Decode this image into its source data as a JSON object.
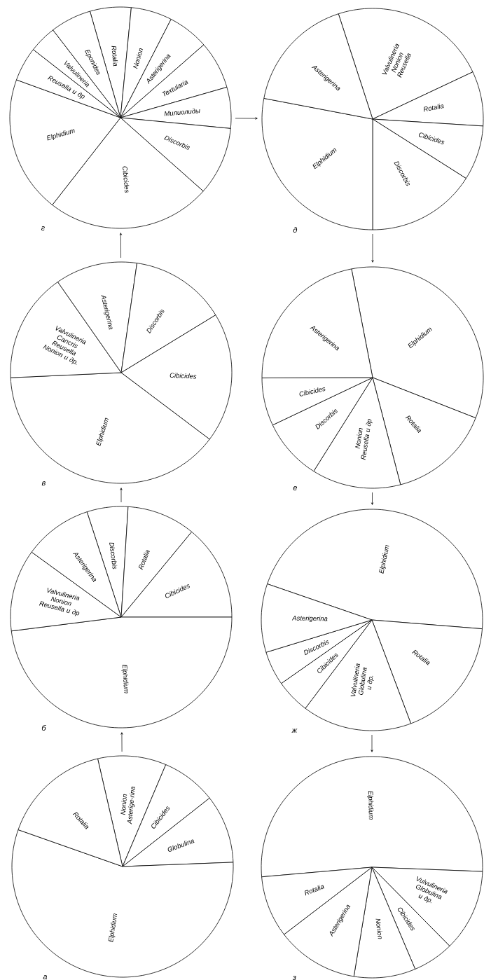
{
  "chart_data": [
    {
      "type": "pie",
      "title": "г",
      "categories": [
        "Rotalia",
        "Nonion",
        "Asterigerina",
        "Textularia",
        "Милиолиды",
        "Discorbis",
        "Cibicides",
        "Elphidium",
        "Reusella и др",
        "Valvulineria",
        "Eponides"
      ],
      "values": [
        6,
        6,
        6,
        7,
        6,
        10,
        24,
        20,
        5,
        4,
        6
      ]
    },
    {
      "type": "pie",
      "title": "д",
      "categories": [
        "Valvulineria Nonion Reusella",
        "Rotalia",
        "Cibicides",
        "Discorbis",
        "Elphidium",
        "Asterigerina"
      ],
      "values": [
        23,
        8,
        8,
        16,
        28,
        17
      ]
    },
    {
      "type": "pie",
      "title": "в",
      "categories": [
        "Asterigerina",
        "Discorbis",
        "Cibicides",
        "Elphidium",
        "Valvulineria Cancris Reusella Nonion и др."
      ],
      "values": [
        12,
        14,
        19,
        39,
        16
      ]
    },
    {
      "type": "pie",
      "title": "е",
      "categories": [
        "Elphidium",
        "Rotalia",
        "Nonion Reusella и др",
        "Discorbis",
        "Cibicides",
        "Asterigerina"
      ],
      "values": [
        34,
        15,
        13,
        9,
        7,
        22
      ]
    },
    {
      "type": "pie",
      "title": "б",
      "categories": [
        "Discorbis",
        "Rotalia",
        "Cibicides",
        "Elphidium",
        "Valvulineria Nonion Reusella и др",
        "Asterigerina"
      ],
      "values": [
        6,
        10,
        14,
        48,
        12,
        10
      ]
    },
    {
      "type": "pie",
      "title": "ж",
      "categories": [
        "Elphidium",
        "Rotalia",
        "Valvulineria Globulina и др.",
        "Cibicides",
        "Discorbis",
        "Asterigerina"
      ],
      "values": [
        46,
        18,
        16,
        5,
        5,
        10
      ]
    },
    {
      "type": "pie",
      "title": "а",
      "categories": [
        "Nonion Asterige-rina",
        "Cibicides",
        "Globulina",
        "Elphidium",
        "Rotalia"
      ],
      "values": [
        10,
        8,
        10,
        56,
        16
      ]
    },
    {
      "type": "pie",
      "title": "з",
      "categories": [
        "Elphidium",
        "Vulvulineria Globulina и др.",
        "Cibicides",
        "Nonion",
        "Asterigerina",
        "Rotalia"
      ],
      "values": [
        52,
        12,
        6,
        9,
        12,
        9
      ]
    }
  ]
}
